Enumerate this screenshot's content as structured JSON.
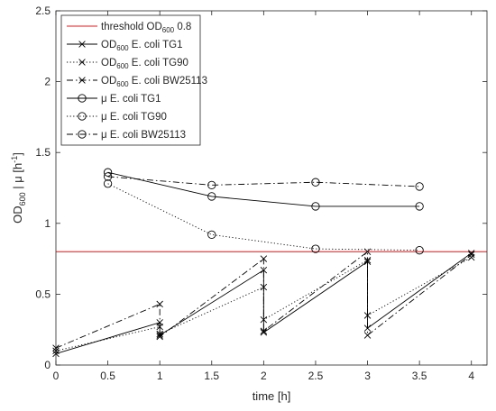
{
  "chart_data": {
    "type": "line",
    "xlabel": "time [h]",
    "ylabel": {
      "main": "OD",
      "sub": "600",
      "rest": " | μ [h",
      "sup": "-1",
      "end": "]"
    },
    "xlim": [
      0,
      4.15
    ],
    "ylim": [
      0,
      2.5
    ],
    "xticks": [
      0,
      0.5,
      1,
      1.5,
      2,
      2.5,
      3,
      3.5,
      4
    ],
    "yticks": [
      0,
      0.5,
      1,
      1.5,
      2,
      2.5
    ],
    "grid": false,
    "legend_position": "top-left",
    "threshold": {
      "value": 0.8,
      "color": "#e41a1c"
    },
    "series": [
      {
        "name": "OD600 E. coli TG1",
        "legend": {
          "pre": "OD",
          "sub": "600",
          "post": " E. coli TG1"
        },
        "dash": "solid",
        "marker": "x",
        "color": "#000000",
        "x": [
          0,
          1,
          1,
          2,
          2,
          3,
          3,
          4
        ],
        "y": [
          0.08,
          0.3,
          0.21,
          0.67,
          0.23,
          0.73,
          0.26,
          0.79
        ]
      },
      {
        "name": "OD600 E. coli TG90",
        "legend": {
          "pre": "OD",
          "sub": "600",
          "post": " E. coli TG90"
        },
        "dash": "dotted",
        "marker": "x",
        "color": "#000000",
        "x": [
          0,
          1,
          1,
          2,
          2,
          3,
          3,
          4
        ],
        "y": [
          0.1,
          0.27,
          0.22,
          0.55,
          0.32,
          0.74,
          0.35,
          0.76
        ]
      },
      {
        "name": "OD600 E. coli BW25113",
        "legend": {
          "pre": "OD",
          "sub": "600",
          "post": " E. coli BW25113"
        },
        "dash": "dashdot",
        "marker": "x",
        "color": "#000000",
        "x": [
          0,
          1,
          1,
          2,
          2,
          3,
          3,
          4
        ],
        "y": [
          0.12,
          0.43,
          0.2,
          0.75,
          0.24,
          0.8,
          0.21,
          0.78
        ]
      },
      {
        "name": "μ E. coli TG1",
        "legend": {
          "pre": "μ E. coli TG1",
          "sub": "",
          "post": ""
        },
        "dash": "solid",
        "marker": "o",
        "color": "#000000",
        "x": [
          0.5,
          1.5,
          2.5,
          3.5
        ],
        "y": [
          1.36,
          1.19,
          1.12,
          1.12
        ]
      },
      {
        "name": "μ E. coli TG90",
        "legend": {
          "pre": "μ E. coli TG90",
          "sub": "",
          "post": ""
        },
        "dash": "dotted",
        "marker": "o",
        "color": "#000000",
        "x": [
          0.5,
          1.5,
          2.5,
          3.5
        ],
        "y": [
          1.28,
          0.92,
          0.82,
          0.81
        ]
      },
      {
        "name": "μ E. coli BW25113",
        "legend": {
          "pre": "μ E. coli BW25113",
          "sub": "",
          "post": ""
        },
        "dash": "dashdot",
        "marker": "o",
        "color": "#000000",
        "x": [
          0.5,
          1.5,
          2.5,
          3.5
        ],
        "y": [
          1.33,
          1.27,
          1.29,
          1.26
        ]
      }
    ],
    "threshold_legend": {
      "pre": "threshold OD",
      "sub": "600",
      "post": " 0.8"
    }
  }
}
